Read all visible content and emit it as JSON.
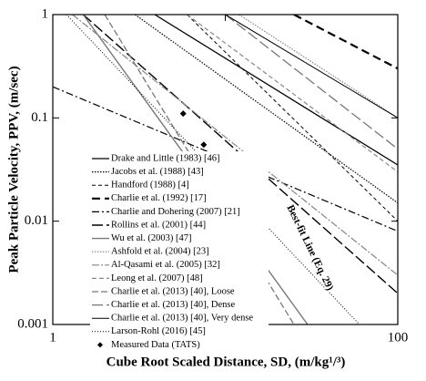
{
  "chart_data": {
    "type": "line",
    "xlabel": "Cube Root Scaled Distance, SD, (m/kg¹/³)",
    "ylabel": "Peak Particle Velocity, PPV,  (m/sec)",
    "xscale": "log",
    "yscale": "log",
    "xlim": [
      1,
      100
    ],
    "ylim": [
      0.001,
      1
    ],
    "xticks": [
      1,
      10,
      100
    ],
    "yticks": [
      0.001,
      0.01,
      0.1,
      1
    ],
    "annotation": "Best-fit Line (Eq. 29)",
    "legend": "lower left",
    "series": [
      {
        "name": "Drake and Little (1983) [46]",
        "color": "#000000",
        "dash": "",
        "width": 1.3,
        "x": [
          3.9,
          100
        ],
        "values": [
          1,
          0.035
        ]
      },
      {
        "name": "Jacobs et al. (1988) [43]",
        "color": "#000000",
        "dash": "1.5 1.5",
        "width": 1.2,
        "x": [
          3,
          100
        ],
        "values": [
          1,
          0.015
        ]
      },
      {
        "name": "Handford (1988) [4]",
        "color": "#000000",
        "dash": "4 3",
        "width": 1,
        "x": [
          6,
          100
        ],
        "values": [
          1,
          0.01
        ]
      },
      {
        "name": "Charlie et al. (1992) [17]",
        "color": "#000000",
        "dash": "9 5",
        "width": 2.2,
        "x": [
          25,
          100
        ],
        "values": [
          1,
          0.3
        ]
      },
      {
        "name": "Charlie and Dohering (2007) [21]",
        "color": "#000000",
        "dash": "8 3 2 3",
        "width": 1.2,
        "x": [
          1,
          100
        ],
        "values": [
          0.2,
          0.008
        ]
      },
      {
        "name": "Rollins et al. (2001) [44]",
        "color": "#000000",
        "dash": "12 4",
        "width": 1.4,
        "x": [
          1.5,
          100
        ],
        "values": [
          1,
          0.002
        ]
      },
      {
        "name": "Wu et al. (2003) [47]",
        "color": "#777777",
        "dash": "",
        "width": 1.4,
        "x": [
          1.5,
          30
        ],
        "values": [
          1,
          0.001
        ]
      },
      {
        "name": "Ashfold et al. (2004) [23]",
        "color": "#888888",
        "dash": "1.5 1.5",
        "width": 1.2,
        "x": [
          12,
          100
        ],
        "values": [
          1,
          0.1
        ]
      },
      {
        "name": "Al-Qasami et al. (2005) [32]",
        "color": "#888888",
        "dash": "8 2 2 2",
        "width": 1.2,
        "x": [
          1.3,
          100
        ],
        "values": [
          1,
          0.003
        ]
      },
      {
        "name": "Leong et al. (2007) [48]",
        "color": "#888888",
        "dash": "5 3",
        "width": 1.2,
        "x": [
          6,
          100
        ],
        "values": [
          1,
          0.03
        ]
      },
      {
        "name": "Charlie et al. (2013) [40], Loose",
        "color": "#777777",
        "dash": "7 3",
        "width": 1.3,
        "x": [
          2,
          25
        ],
        "values": [
          1,
          0.001
        ]
      },
      {
        "name": "Charlie et al. (2013) [40], Dense",
        "color": "#777777",
        "dash": "12 4",
        "width": 1.3,
        "x": [
          10,
          100
        ],
        "values": [
          1,
          0.05
        ]
      },
      {
        "name": "Charlie et al. (2013) [40], Very dense",
        "color": "#000000",
        "dash": "",
        "width": 1,
        "x": [
          10,
          100
        ],
        "values": [
          1,
          0.1
        ]
      },
      {
        "name": "Larson-Rohl (2016) [45]",
        "color": "#000000",
        "dash": "1 2",
        "width": 1,
        "x": [
          1.2,
          60
        ],
        "values": [
          1,
          0.001
        ]
      },
      {
        "name": "Measured Data (TATS)",
        "color": "#000000",
        "marker": "diamond",
        "x": [
          5.7,
          7.5
        ],
        "values": [
          0.11,
          0.055
        ]
      }
    ]
  }
}
